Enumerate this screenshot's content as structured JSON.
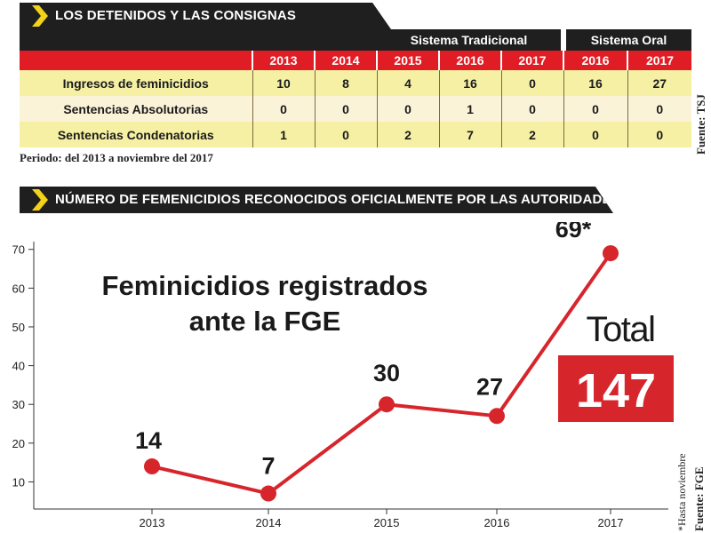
{
  "section1": {
    "title": "LOS DETENIDOS Y LAS CONSIGNAS"
  },
  "table": {
    "system_headers": [
      "Sistema Tradicional",
      "Sistema Oral"
    ],
    "years": [
      "2013",
      "2014",
      "2015",
      "2016",
      "2017",
      "2016",
      "2017"
    ],
    "rows": [
      {
        "label": "Ingresos de feminicidios",
        "values": [
          "10",
          "8",
          "4",
          "16",
          "0",
          "16",
          "27"
        ]
      },
      {
        "label": "Sentencias Absolutorias",
        "values": [
          "0",
          "0",
          "0",
          "1",
          "0",
          "0",
          "0"
        ]
      },
      {
        "label": "Sentencias Condenatorias",
        "values": [
          "1",
          "0",
          "2",
          "7",
          "2",
          "0",
          "0"
        ]
      }
    ],
    "period_note": "Periodo: del 2013 a noviembre del 2017",
    "source": "Fuente: TSJ"
  },
  "section2": {
    "title": "NÚMERO DE FEMENICIDIOS RECONOCIDOS OFICIALMENTE POR LAS AUTORIDADES"
  },
  "chart_data": {
    "type": "line",
    "title": "Feminicidios registrados ante la FGE",
    "title_lines": [
      "Feminicidios registrados",
      "ante la FGE"
    ],
    "x": [
      "2013",
      "2014",
      "2015",
      "2016",
      "2017"
    ],
    "values": [
      14,
      7,
      30,
      27,
      69
    ],
    "point_labels": [
      "14",
      "7",
      "30",
      "27",
      "69*"
    ],
    "yticks": [
      10,
      20,
      30,
      40,
      50,
      60,
      70
    ],
    "ylim": [
      3,
      72
    ],
    "grid": false,
    "line_color": "#d7252c",
    "total_label": "Total",
    "total_value": "147",
    "footnote": "*Hasta noviembre",
    "source": "Fuente: FGE"
  }
}
